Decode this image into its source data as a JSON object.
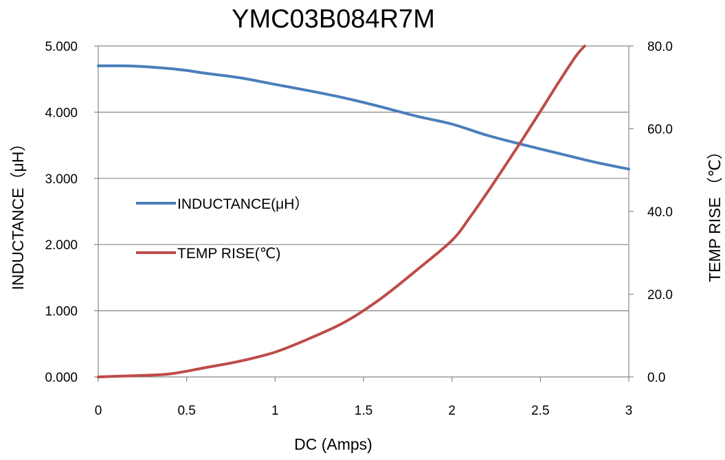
{
  "chart_data": {
    "type": "line",
    "title": "YMC03B084R7M",
    "xlabel": "DC (Amps)",
    "ylabel": "INDUCTANCE（μH）",
    "y2label": "TEMP RISE （℃）",
    "xlim": [
      0,
      3
    ],
    "ylim": [
      0,
      5
    ],
    "y2lim": [
      0,
      80
    ],
    "xticks": [
      "0",
      "0.5",
      "1",
      "1.5",
      "2",
      "2.5",
      "3"
    ],
    "yticks": [
      "0.000",
      "1.000",
      "2.000",
      "3.000",
      "4.000",
      "5.000"
    ],
    "y2ticks": [
      "0.0",
      "20.0",
      "40.0",
      "60.0",
      "80.0"
    ],
    "grid": "horizontal",
    "legend_position": "center-left",
    "series": [
      {
        "name": "INDUCTANCE(μH）",
        "axis": "left",
        "color": "#4A7EBB",
        "points": [
          [
            0,
            4.7
          ],
          [
            0.15,
            4.7
          ],
          [
            0.25,
            4.69
          ],
          [
            0.4,
            4.66
          ],
          [
            0.5,
            4.63
          ],
          [
            0.6,
            4.59
          ],
          [
            0.8,
            4.52
          ],
          [
            1.0,
            4.42
          ],
          [
            1.2,
            4.32
          ],
          [
            1.4,
            4.21
          ],
          [
            1.6,
            4.08
          ],
          [
            1.8,
            3.94
          ],
          [
            2.0,
            3.82
          ],
          [
            2.2,
            3.65
          ],
          [
            2.4,
            3.51
          ],
          [
            2.6,
            3.38
          ],
          [
            2.8,
            3.25
          ],
          [
            3.0,
            3.14
          ]
        ]
      },
      {
        "name": "TEMP RISE(℃)",
        "axis": "right",
        "color": "#BE4B48",
        "points": [
          [
            0,
            0.0
          ],
          [
            0.2,
            0.3
          ],
          [
            0.4,
            0.7
          ],
          [
            0.6,
            2.2
          ],
          [
            0.8,
            3.8
          ],
          [
            1.0,
            6.0
          ],
          [
            1.2,
            9.4
          ],
          [
            1.4,
            13.4
          ],
          [
            1.6,
            19.0
          ],
          [
            1.8,
            25.8
          ],
          [
            2.0,
            33.0
          ],
          [
            2.1,
            38.5
          ],
          [
            2.2,
            44.6
          ],
          [
            2.3,
            51.0
          ],
          [
            2.4,
            57.5
          ],
          [
            2.5,
            64.2
          ],
          [
            2.6,
            71.0
          ],
          [
            2.7,
            77.5
          ],
          [
            2.75,
            80.0
          ]
        ]
      }
    ]
  }
}
